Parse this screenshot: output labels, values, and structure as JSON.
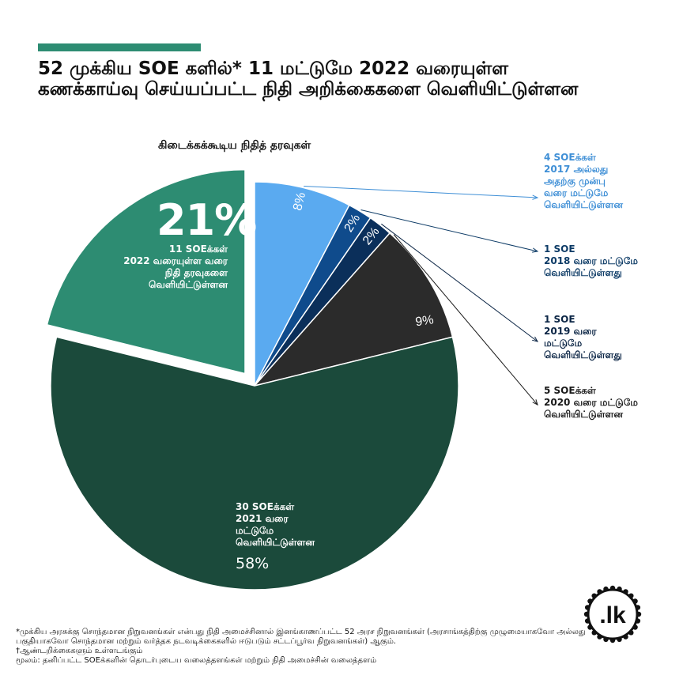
{
  "header": {
    "title": "52 முக்கிய SOE களில்* 11 மட்டுமே 2022 வரையுள்ள கணக்காய்வு செய்யப்பட்ட நிதி அறிக்கைகளை வெளியிட்டுள்ளன"
  },
  "colors": {
    "accent": "#2d8c72",
    "slice_2022": "#2d8c72",
    "slice_2021": "#1b4a3b",
    "slice_2020": "#2b2b2b",
    "slice_2019": "#0b2f5a",
    "slice_2018": "#0f4b8c",
    "slice_2017": "#5aaaf0"
  },
  "chart_data": {
    "type": "pie",
    "title": "கிடைக்கக்கூடிய நிதித் தரவுகள்",
    "slices": [
      {
        "label_lines": [
          "4 SOEக்கள்",
          "2017 அல்லது",
          "அதற்கு முன்பு",
          "வரை மட்டுமே",
          "வெளியிட்டுள்ளன"
        ],
        "count": 4,
        "percent": 8,
        "percent_label": "8%"
      },
      {
        "label_lines": [
          "1 SOE",
          "2018 வரை மட்டுமே",
          "வெளியிட்டுள்ளது"
        ],
        "count": 1,
        "percent": 2,
        "percent_label": "2%"
      },
      {
        "label_lines": [
          "1 SOE",
          "2019 வரை",
          "மட்டுமே",
          "வெளியிட்டுள்ளது"
        ],
        "count": 1,
        "percent": 2,
        "percent_label": "2%"
      },
      {
        "label_lines": [
          "5 SOEக்கள்",
          "2020 வரை மட்டுமே",
          "வெளியிட்டுள்ளன"
        ],
        "count": 5,
        "percent": 9,
        "percent_label": "9%"
      },
      {
        "label_lines": [
          "30 SOEக்கள்",
          "2021 வரை",
          "மட்டுமே",
          "வெளியிட்டுள்ளன"
        ],
        "count": 30,
        "percent": 58,
        "percent_label": "58%"
      },
      {
        "label_lines": [
          "11 SOEக்கள்",
          "2022 வரையுள்ள வரை",
          "நிதி தரவுகளை",
          "வெளியிட்டுள்ளன"
        ],
        "count": 11,
        "percent": 21,
        "percent_label": "21%",
        "exploded": true
      }
    ]
  },
  "footnotes": {
    "note1": "*முக்கிய அரசுக்கு சொந்தமான நிறுவனங்கள் என்பது நிதி அமைச்சினால் இனங்காணப்பட்ட 52 அரச நிறுவனங்கள் (அரசாங்கத்திற்கு முழுமையாகவோ அல்லது பகுதியாகவோ சொந்தமான மற்றும் வர்த்தக நடவடிக்கைகளில் ஈடுபடும் சட்டப்பூர்வ நிறுவனங்கள்) ஆகும்.",
    "note2": "†ஆண்டறிக்கைகளும் உள்ளடங்கும்",
    "source": "மூலம்: தனிப்பட்ட SOEக்களின் தொடர்புடைய வலைத்தளங்கள் மற்றும் நிதி அமைச்சின் வலைத்தளம்"
  },
  "logo": {
    "text": ".lk"
  }
}
